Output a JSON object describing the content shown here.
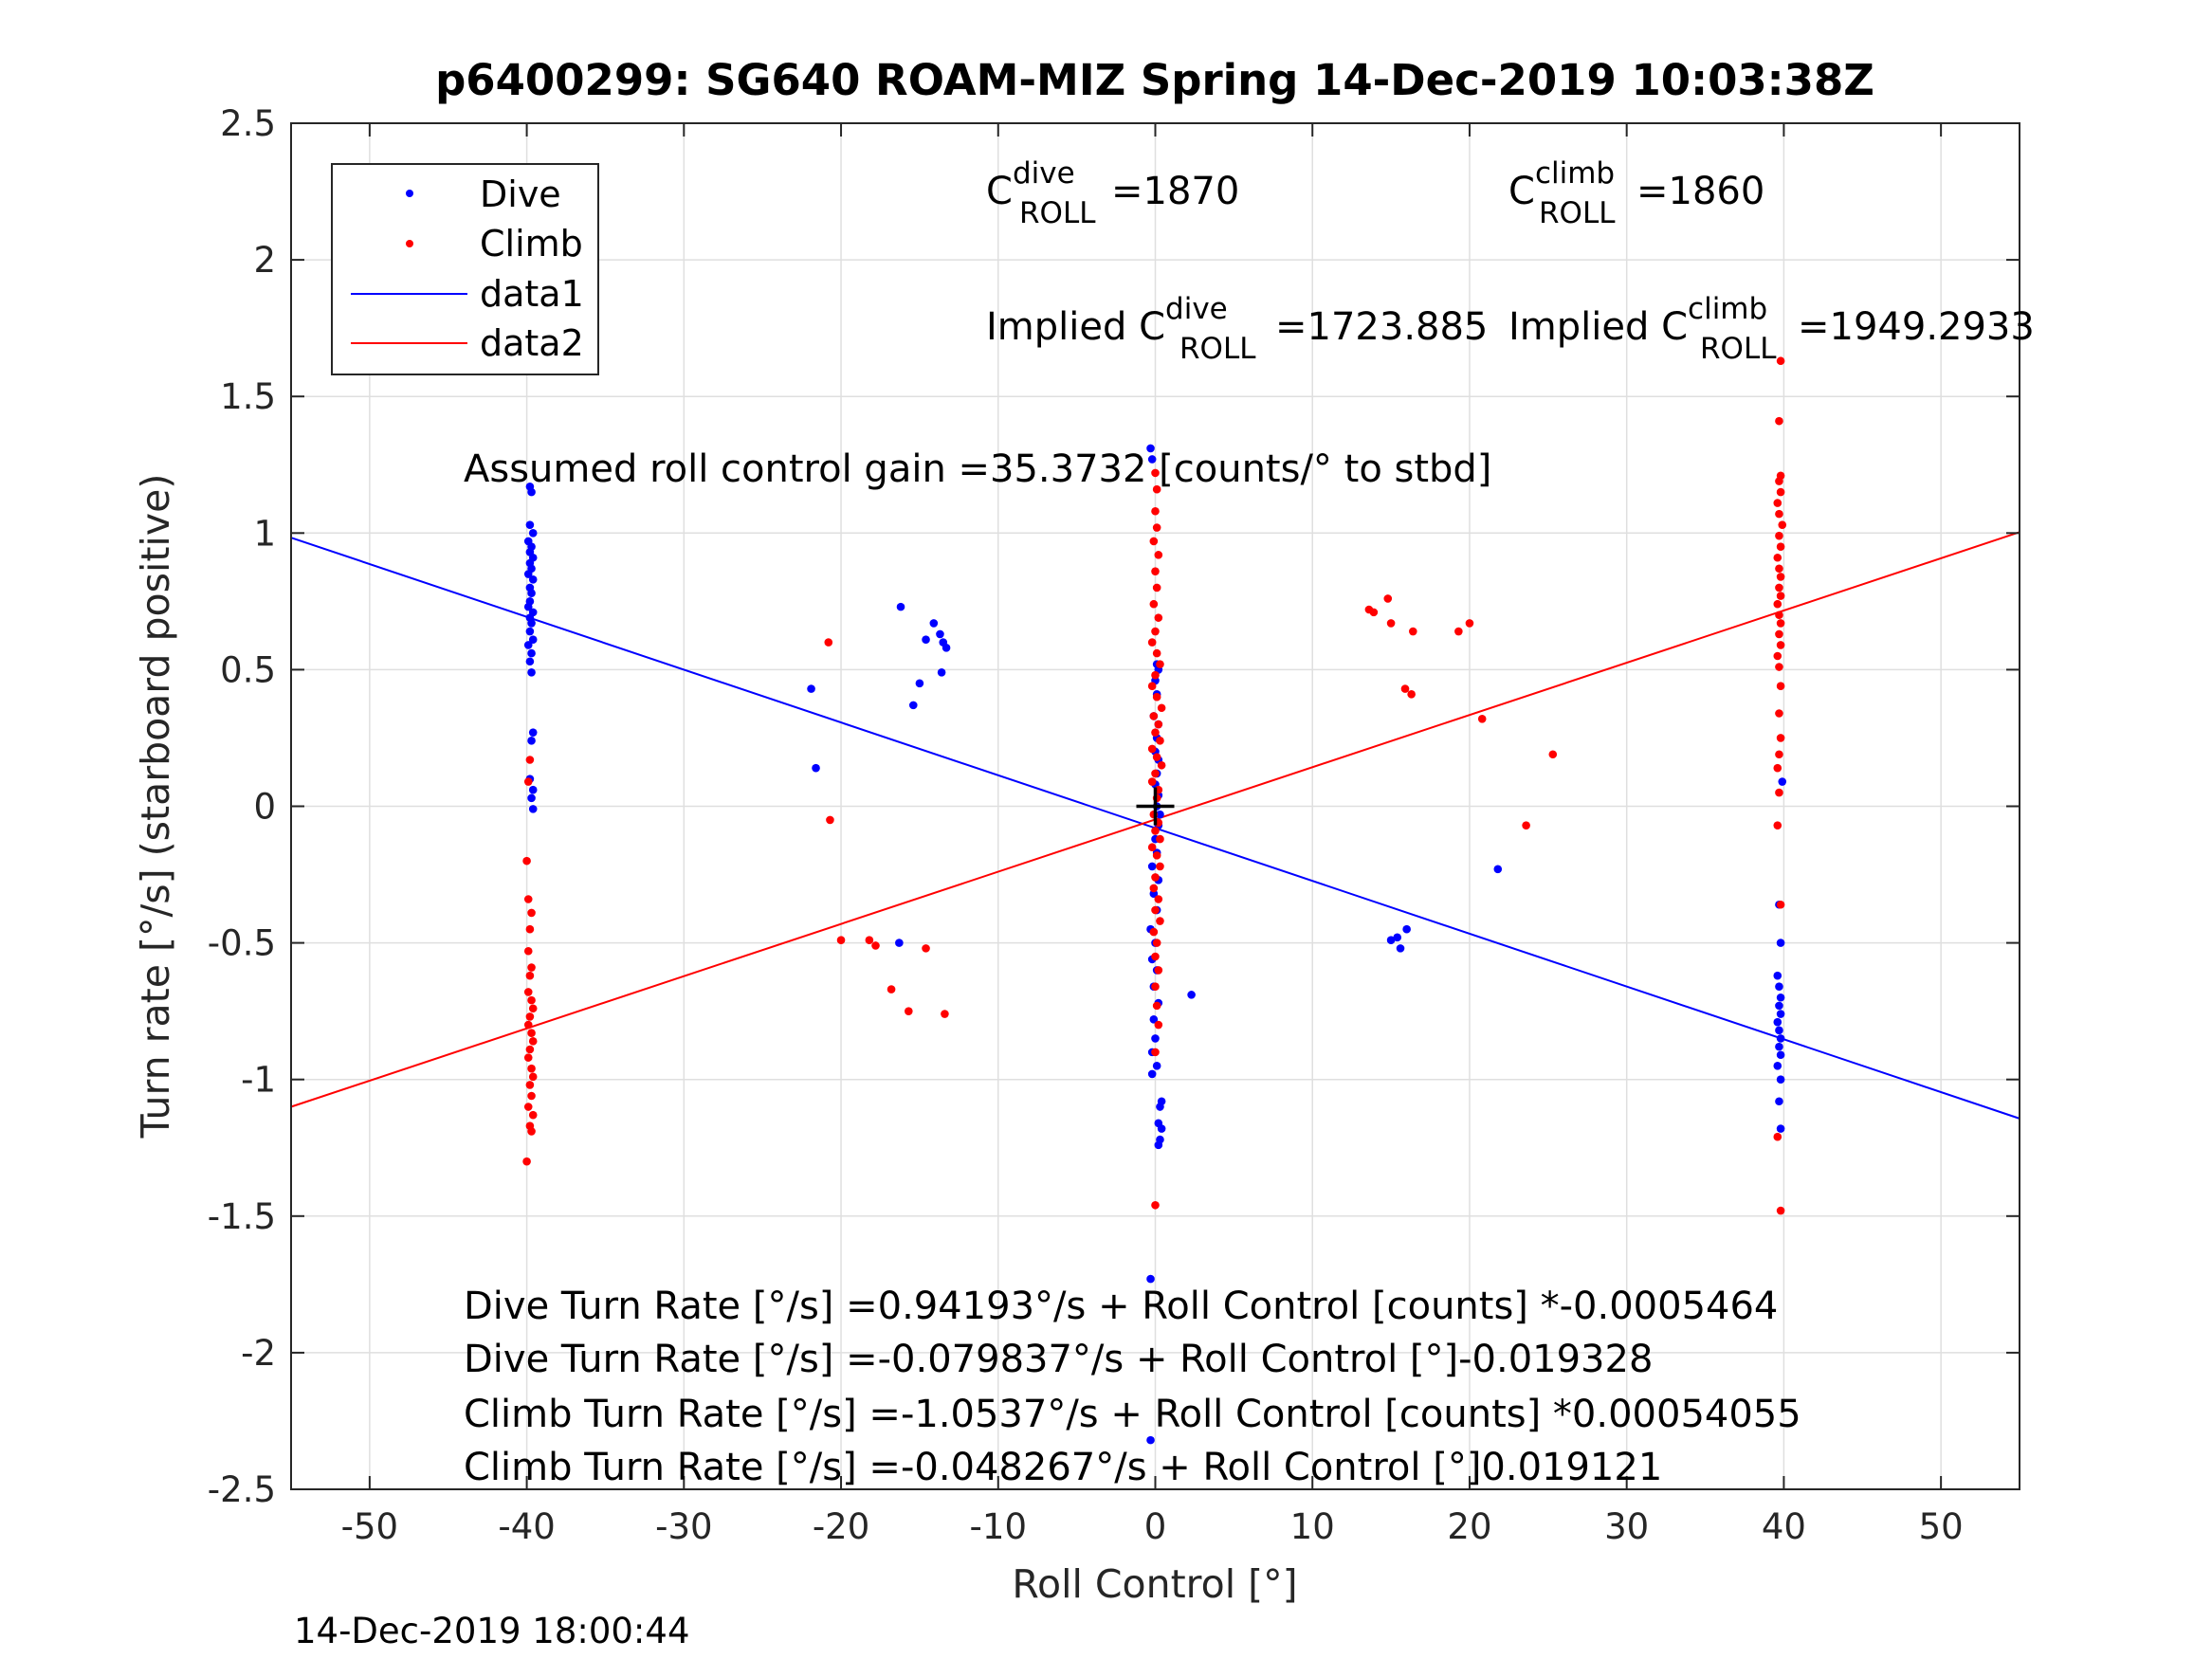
{
  "chart_data": {
    "type": "scatter",
    "title": "p6400299: SG640 ROAM-MIZ Spring 14-Dec-2019 10:03:38Z",
    "xlabel": "Roll Control [°]",
    "ylabel": "Turn rate [°/s] (starboard positive)",
    "xlim": [
      -55,
      55
    ],
    "ylim": [
      -2.5,
      2.5
    ],
    "xticks": [
      -50,
      -40,
      -30,
      -20,
      -10,
      0,
      10,
      20,
      30,
      40,
      50
    ],
    "xtick_labels": [
      "-50",
      "-40",
      "-30",
      "-20",
      "-10",
      "0",
      "10",
      "20",
      "30",
      "40",
      "50"
    ],
    "yticks": [
      2.5,
      2,
      1.5,
      1,
      0.5,
      0,
      -0.5,
      -1,
      -1.5,
      -2,
      -2.5
    ],
    "ytick_labels": [
      "2.5",
      "2",
      "1.5",
      "1",
      "0.5",
      "0",
      "-0.5",
      "-1",
      "-1.5",
      "-2",
      "-2.5"
    ],
    "grid": true,
    "legend_position": "top-left",
    "legend": [
      {
        "label": "Dive",
        "kind": "marker",
        "color": "#0000ff"
      },
      {
        "label": "Climb",
        "kind": "marker",
        "color": "#ff0000"
      },
      {
        "label": "data1",
        "kind": "line",
        "color": "#0000ff"
      },
      {
        "label": "data2",
        "kind": "line",
        "color": "#ff0000"
      }
    ],
    "series": [
      {
        "name": "Dive",
        "kind": "scatter",
        "color": "#0000ff",
        "points": [
          [
            -39.8,
            1.17
          ],
          [
            -39.7,
            1.15
          ],
          [
            -39.8,
            1.03
          ],
          [
            -39.6,
            1.0
          ],
          [
            -39.9,
            0.97
          ],
          [
            -39.7,
            0.95
          ],
          [
            -39.8,
            0.93
          ],
          [
            -39.6,
            0.91
          ],
          [
            -39.8,
            0.89
          ],
          [
            -39.7,
            0.87
          ],
          [
            -39.9,
            0.85
          ],
          [
            -39.6,
            0.83
          ],
          [
            -39.8,
            0.8
          ],
          [
            -39.7,
            0.78
          ],
          [
            -39.8,
            0.75
          ],
          [
            -39.9,
            0.73
          ],
          [
            -39.6,
            0.71
          ],
          [
            -39.8,
            0.69
          ],
          [
            -39.7,
            0.67
          ],
          [
            -39.8,
            0.64
          ],
          [
            -39.6,
            0.61
          ],
          [
            -39.9,
            0.59
          ],
          [
            -39.7,
            0.56
          ],
          [
            -39.8,
            0.53
          ],
          [
            -39.7,
            0.49
          ],
          [
            -39.6,
            0.27
          ],
          [
            -39.7,
            0.24
          ],
          [
            -39.8,
            0.1
          ],
          [
            -39.6,
            0.06
          ],
          [
            -39.7,
            0.03
          ],
          [
            -39.6,
            -0.01
          ],
          [
            -21.9,
            0.43
          ],
          [
            -21.6,
            0.14
          ],
          [
            -16.2,
            0.73
          ],
          [
            -15.4,
            0.37
          ],
          [
            -15.0,
            0.45
          ],
          [
            -14.6,
            0.61
          ],
          [
            -14.1,
            0.67
          ],
          [
            -13.7,
            0.63
          ],
          [
            -13.5,
            0.6
          ],
          [
            -13.3,
            0.58
          ],
          [
            -13.6,
            0.49
          ],
          [
            -16.3,
            -0.5
          ],
          [
            -0.3,
            1.31
          ],
          [
            -0.2,
            1.27
          ],
          [
            0.1,
            0.52
          ],
          [
            0.2,
            0.5
          ],
          [
            0.0,
            0.46
          ],
          [
            0.1,
            0.41
          ],
          [
            -0.1,
            0.33
          ],
          [
            0.2,
            0.3
          ],
          [
            0.1,
            0.25
          ],
          [
            0.0,
            0.2
          ],
          [
            0.2,
            0.17
          ],
          [
            0.1,
            0.12
          ],
          [
            0.0,
            0.08
          ],
          [
            0.2,
            0.04
          ],
          [
            0.1,
            0.0
          ],
          [
            0.3,
            -0.03
          ],
          [
            0.2,
            -0.07
          ],
          [
            0.0,
            -0.12
          ],
          [
            0.1,
            -0.17
          ],
          [
            -0.2,
            -0.22
          ],
          [
            0.2,
            -0.27
          ],
          [
            -0.1,
            -0.32
          ],
          [
            0.1,
            -0.38
          ],
          [
            -0.3,
            -0.45
          ],
          [
            0.0,
            -0.5
          ],
          [
            -0.2,
            -0.56
          ],
          [
            0.1,
            -0.6
          ],
          [
            -0.1,
            -0.66
          ],
          [
            0.2,
            -0.72
          ],
          [
            -0.1,
            -0.78
          ],
          [
            0.0,
            -0.85
          ],
          [
            -0.2,
            -0.9
          ],
          [
            0.1,
            -0.95
          ],
          [
            -0.2,
            -0.98
          ],
          [
            0.4,
            -1.08
          ],
          [
            0.3,
            -1.1
          ],
          [
            0.2,
            -1.16
          ],
          [
            0.4,
            -1.18
          ],
          [
            0.3,
            -1.22
          ],
          [
            0.2,
            -1.24
          ],
          [
            -0.3,
            -1.73
          ],
          [
            -0.3,
            -2.32
          ],
          [
            2.3,
            -0.69
          ],
          [
            15.0,
            -0.49
          ],
          [
            15.4,
            -0.48
          ],
          [
            15.6,
            -0.52
          ],
          [
            16.0,
            -0.45
          ],
          [
            21.8,
            -0.23
          ],
          [
            39.9,
            0.09
          ],
          [
            39.7,
            -0.36
          ],
          [
            39.8,
            -0.5
          ],
          [
            39.6,
            -0.62
          ],
          [
            39.7,
            -0.66
          ],
          [
            39.8,
            -0.7
          ],
          [
            39.7,
            -0.73
          ],
          [
            39.8,
            -0.76
          ],
          [
            39.6,
            -0.79
          ],
          [
            39.7,
            -0.82
          ],
          [
            39.8,
            -0.85
          ],
          [
            39.7,
            -0.88
          ],
          [
            39.8,
            -0.91
          ],
          [
            39.6,
            -0.95
          ],
          [
            39.8,
            -1.0
          ],
          [
            39.7,
            -1.08
          ],
          [
            39.8,
            -1.18
          ]
        ]
      },
      {
        "name": "Climb",
        "kind": "scatter",
        "color": "#ff0000",
        "points": [
          [
            -40.0,
            -0.2
          ],
          [
            -39.9,
            -0.34
          ],
          [
            -39.7,
            -0.39
          ],
          [
            -39.8,
            -0.45
          ],
          [
            -39.9,
            -0.53
          ],
          [
            -39.7,
            -0.59
          ],
          [
            -39.8,
            -0.62
          ],
          [
            -39.9,
            -0.68
          ],
          [
            -39.7,
            -0.71
          ],
          [
            -39.6,
            -0.74
          ],
          [
            -39.8,
            -0.77
          ],
          [
            -39.9,
            -0.8
          ],
          [
            -39.7,
            -0.83
          ],
          [
            -39.6,
            -0.86
          ],
          [
            -39.8,
            -0.89
          ],
          [
            -39.9,
            -0.92
          ],
          [
            -39.7,
            -0.96
          ],
          [
            -39.6,
            -0.99
          ],
          [
            -39.8,
            -1.02
          ],
          [
            -39.7,
            -1.06
          ],
          [
            -39.9,
            -1.1
          ],
          [
            -39.6,
            -1.13
          ],
          [
            -39.8,
            -1.17
          ],
          [
            -39.7,
            -1.19
          ],
          [
            -40.0,
            -1.3
          ],
          [
            -39.8,
            0.17
          ],
          [
            -39.9,
            0.09
          ],
          [
            -20.8,
            0.6
          ],
          [
            -20.7,
            -0.05
          ],
          [
            -20.0,
            -0.49
          ],
          [
            -18.2,
            -0.49
          ],
          [
            -17.8,
            -0.51
          ],
          [
            -16.8,
            -0.67
          ],
          [
            -15.7,
            -0.75
          ],
          [
            -14.6,
            -0.52
          ],
          [
            -13.4,
            -0.76
          ],
          [
            0.0,
            1.22
          ],
          [
            0.1,
            1.16
          ],
          [
            0.0,
            1.08
          ],
          [
            0.1,
            1.02
          ],
          [
            -0.1,
            0.97
          ],
          [
            0.2,
            0.92
          ],
          [
            0.0,
            0.86
          ],
          [
            0.1,
            0.8
          ],
          [
            -0.1,
            0.74
          ],
          [
            0.2,
            0.69
          ],
          [
            0.0,
            0.64
          ],
          [
            -0.2,
            0.6
          ],
          [
            0.1,
            0.56
          ],
          [
            0.3,
            0.52
          ],
          [
            0.0,
            0.48
          ],
          [
            -0.2,
            0.44
          ],
          [
            0.1,
            0.4
          ],
          [
            0.4,
            0.36
          ],
          [
            -0.1,
            0.33
          ],
          [
            0.2,
            0.3
          ],
          [
            0.0,
            0.27
          ],
          [
            0.3,
            0.24
          ],
          [
            -0.2,
            0.21
          ],
          [
            0.1,
            0.18
          ],
          [
            0.4,
            0.15
          ],
          [
            0.0,
            0.12
          ],
          [
            -0.2,
            0.09
          ],
          [
            0.2,
            0.06
          ],
          [
            0.1,
            0.03
          ],
          [
            -0.1,
            -0.03
          ],
          [
            0.2,
            -0.06
          ],
          [
            0.0,
            -0.09
          ],
          [
            0.3,
            -0.12
          ],
          [
            -0.2,
            -0.15
          ],
          [
            0.1,
            -0.18
          ],
          [
            0.3,
            -0.22
          ],
          [
            0.0,
            -0.26
          ],
          [
            -0.1,
            -0.3
          ],
          [
            0.2,
            -0.34
          ],
          [
            0.0,
            -0.38
          ],
          [
            0.3,
            -0.42
          ],
          [
            -0.1,
            -0.46
          ],
          [
            0.1,
            -0.5
          ],
          [
            0.0,
            -0.55
          ],
          [
            0.2,
            -0.6
          ],
          [
            0.0,
            -0.66
          ],
          [
            0.1,
            -0.73
          ],
          [
            0.2,
            -0.8
          ],
          [
            0.0,
            -0.9
          ],
          [
            0.0,
            -1.46
          ],
          [
            13.6,
            0.72
          ],
          [
            13.9,
            0.71
          ],
          [
            14.8,
            0.76
          ],
          [
            15.0,
            0.67
          ],
          [
            16.4,
            0.64
          ],
          [
            15.9,
            0.43
          ],
          [
            16.3,
            0.41
          ],
          [
            19.3,
            0.64
          ],
          [
            20.0,
            0.67
          ],
          [
            20.8,
            0.32
          ],
          [
            25.3,
            0.19
          ],
          [
            23.6,
            -0.07
          ],
          [
            39.8,
            1.63
          ],
          [
            39.7,
            1.41
          ],
          [
            39.8,
            1.21
          ],
          [
            39.7,
            1.19
          ],
          [
            39.8,
            1.15
          ],
          [
            39.6,
            1.11
          ],
          [
            39.7,
            1.07
          ],
          [
            39.9,
            1.03
          ],
          [
            39.7,
            0.99
          ],
          [
            39.8,
            0.95
          ],
          [
            39.6,
            0.91
          ],
          [
            39.7,
            0.87
          ],
          [
            39.8,
            0.84
          ],
          [
            39.7,
            0.8
          ],
          [
            39.8,
            0.77
          ],
          [
            39.6,
            0.74
          ],
          [
            39.7,
            0.7
          ],
          [
            39.8,
            0.67
          ],
          [
            39.7,
            0.63
          ],
          [
            39.8,
            0.59
          ],
          [
            39.6,
            0.55
          ],
          [
            39.7,
            0.51
          ],
          [
            39.8,
            0.44
          ],
          [
            39.7,
            0.34
          ],
          [
            39.8,
            0.25
          ],
          [
            39.7,
            0.19
          ],
          [
            39.6,
            0.14
          ],
          [
            39.7,
            0.05
          ],
          [
            39.6,
            -0.07
          ],
          [
            39.8,
            -0.36
          ],
          [
            39.6,
            -1.21
          ],
          [
            39.8,
            -1.48
          ]
        ]
      },
      {
        "name": "data1",
        "kind": "line",
        "color": "#0000ff",
        "intercept": -0.079837,
        "slope": -0.019328
      },
      {
        "name": "data2",
        "kind": "line",
        "color": "#ff0000",
        "intercept": -0.048267,
        "slope": 0.019121
      }
    ],
    "center_marker": {
      "x": 0,
      "y": 0,
      "symbol": "+",
      "color": "#000000"
    },
    "annotations": {
      "c_dive": {
        "prefix": "C",
        "sup": "dive",
        "sub": "ROLL",
        "value": "=1870"
      },
      "c_climb": {
        "prefix": "C",
        "sup": "climb",
        "sub": "ROLL",
        "value": "=1860"
      },
      "implied_dive": {
        "prefix": "Implied C",
        "sup": "dive",
        "sub": "ROLL",
        "value": "=1723.885"
      },
      "implied_climb": {
        "prefix": "Implied C",
        "sup": "climb",
        "sub": "ROLL",
        "value": "=1949.2933"
      },
      "gain": "Assumed roll control gain =35.3732 [counts/° to stbd]",
      "equations": [
        "Dive Turn Rate [°/s] =0.94193°/s + Roll Control [counts] *-0.0005464",
        "Dive Turn Rate [°/s] =-0.079837°/s + Roll Control [°]-0.019328",
        "Climb Turn Rate [°/s] =-1.0537°/s + Roll Control [counts] *0.00054055",
        "Climb Turn Rate [°/s] =-0.048267°/s + Roll Control [°]0.019121"
      ]
    },
    "timestamp": "14-Dec-2019 18:00:44"
  }
}
